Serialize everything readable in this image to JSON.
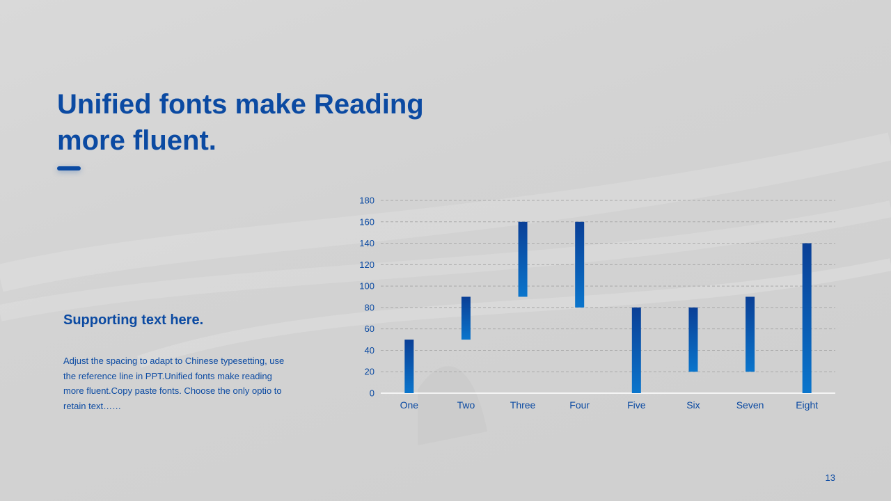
{
  "slide": {
    "title_line1": "Unified fonts make Reading",
    "title_line2": "more fluent.",
    "support_title": "Supporting text here.",
    "support_body": "Adjust the spacing to adapt to Chinese typesetting, use the reference line in PPT.Unified fonts make reading more fluent.Copy paste fonts. Choose the only optio to retain text……",
    "page_number": "13"
  },
  "colors": {
    "accent": "#0b4aa2",
    "bar_top": "#0a3f96",
    "bar_bottom": "#0a75cc",
    "grid": "#a9a9a9"
  },
  "chart_data": {
    "type": "bar",
    "subtype": "floating-range",
    "categories": [
      "One",
      "Two",
      "Three",
      "Four",
      "Five",
      "Six",
      "Seven",
      "Eight"
    ],
    "ranges": [
      [
        0,
        50
      ],
      [
        50,
        90
      ],
      [
        90,
        160
      ],
      [
        80,
        160
      ],
      [
        0,
        80
      ],
      [
        20,
        80
      ],
      [
        20,
        90
      ],
      [
        0,
        140
      ]
    ],
    "ylim": [
      0,
      180
    ],
    "yticks": [
      0,
      20,
      40,
      60,
      80,
      100,
      120,
      140,
      160,
      180
    ],
    "grid": true,
    "grid_style": "dashed",
    "legend": "none",
    "title": "",
    "xlabel": "",
    "ylabel": ""
  }
}
